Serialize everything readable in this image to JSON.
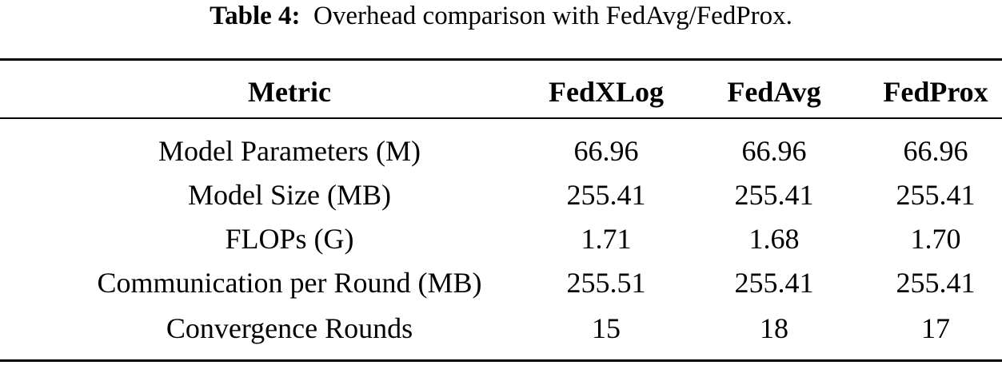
{
  "caption": {
    "label": "Table 4:",
    "text": "Overhead comparison with FedAvg/FedProx."
  },
  "table": {
    "headers": [
      "Metric",
      "FedXLog",
      "FedAvg",
      "FedProx"
    ],
    "rows": [
      [
        "Model Parameters (M)",
        "66.96",
        "66.96",
        "66.96"
      ],
      [
        "Model Size (MB)",
        "255.41",
        "255.41",
        "255.41"
      ],
      [
        "FLOPs (G)",
        "1.71",
        "1.68",
        "1.70"
      ],
      [
        "Communication per Round (MB)",
        "255.51",
        "255.41",
        "255.41"
      ],
      [
        "Convergence Rounds",
        "15",
        "18",
        "17"
      ]
    ]
  }
}
